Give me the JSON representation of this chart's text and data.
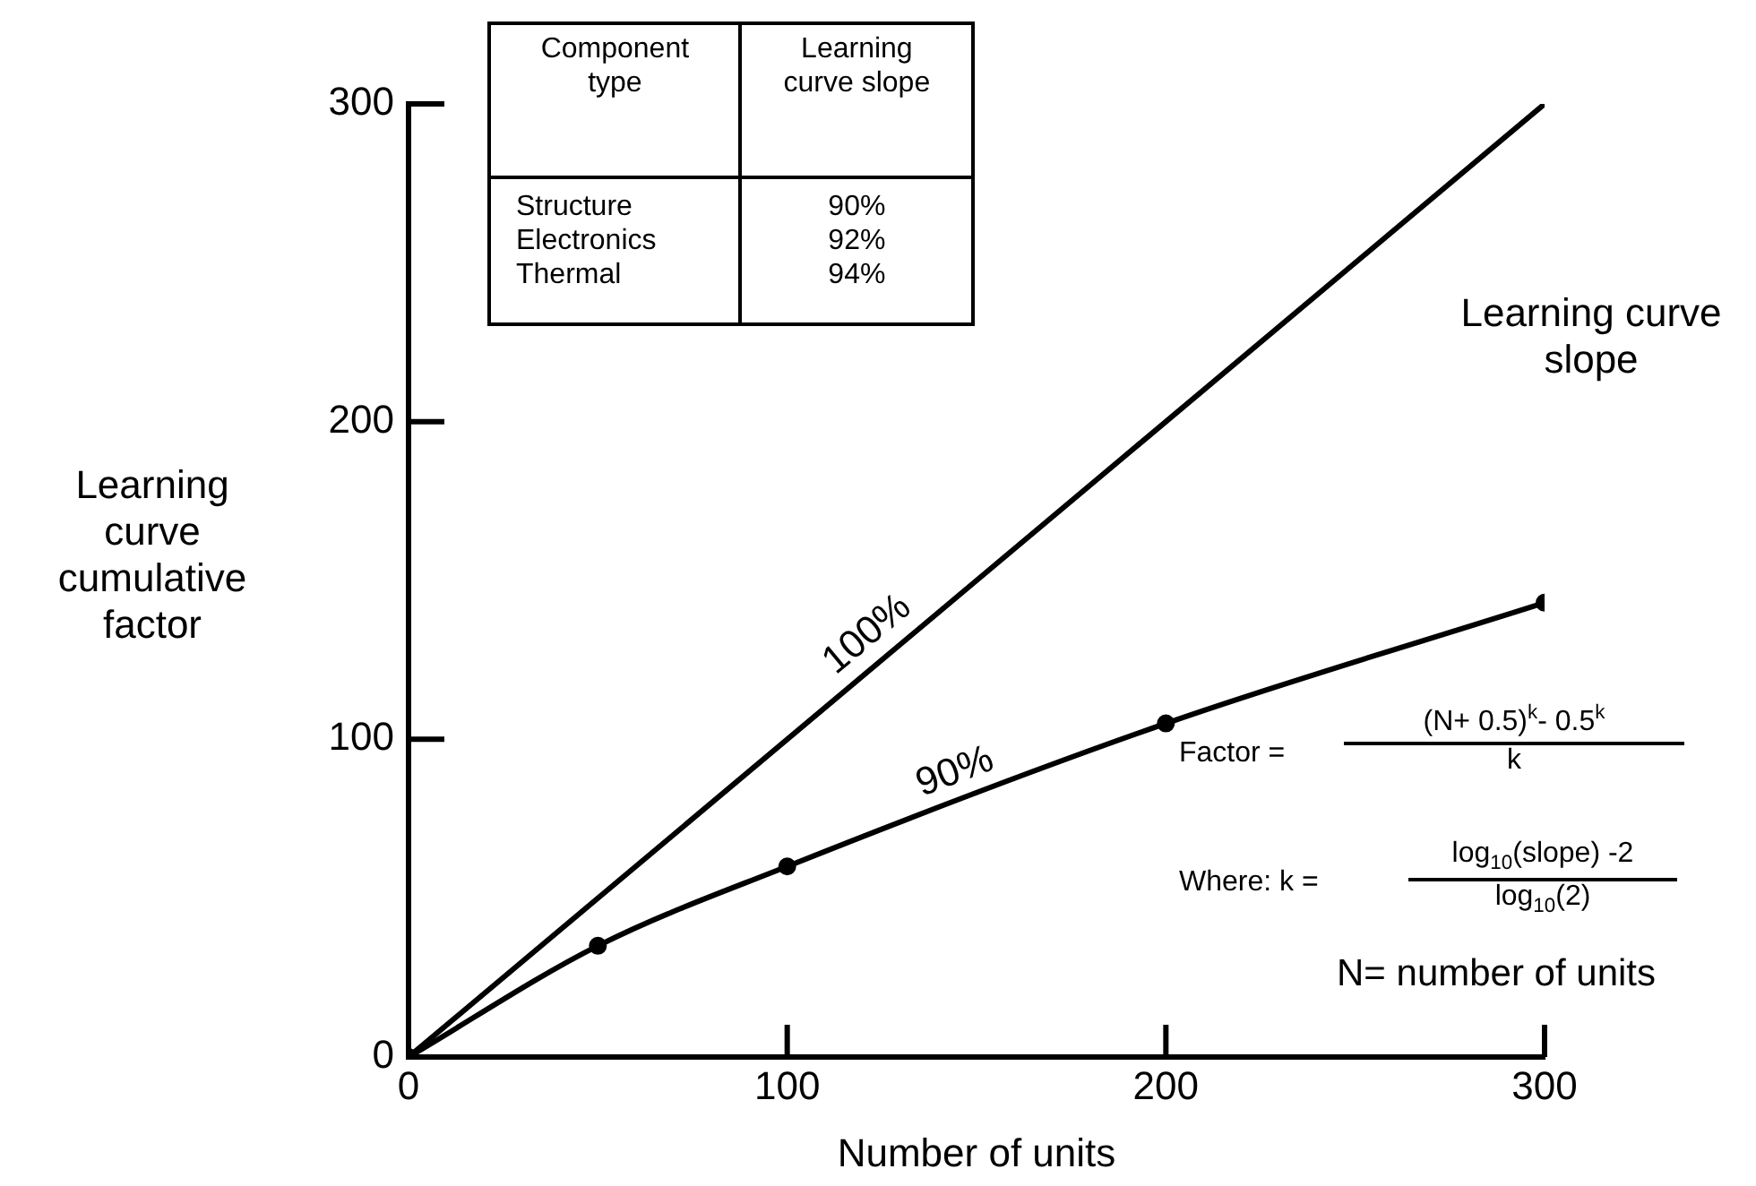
{
  "chart_data": {
    "type": "line",
    "xlabel": "Number of units",
    "ylabel": "Learning curve cumulative factor",
    "xlim": [
      0,
      300
    ],
    "xticks": [
      0,
      100,
      200,
      300
    ],
    "ylim": [
      0,
      300
    ],
    "yticks": [
      0,
      100,
      200,
      300
    ],
    "grid": false,
    "legend": false,
    "line_style": "solid",
    "series": [
      {
        "name": "100%",
        "color": "#000000",
        "x": [
          0,
          300
        ],
        "values": [
          0,
          300
        ]
      },
      {
        "name": "90%",
        "color": "#000000",
        "marker": "circle",
        "x": [
          0,
          50,
          100,
          200,
          300
        ],
        "values": [
          0,
          35,
          60,
          105,
          143
        ]
      }
    ],
    "annotations": [
      "Component type",
      "Learning curve slope",
      "Structure",
      "90%",
      "Electronics",
      "92%",
      "Thermal",
      "94%",
      "Learning curve slope",
      "Factor =",
      "(N+ 0.5)$^{k}$- 0.5$^{k}$",
      "k",
      "Where:   k =",
      "log$_{10}$(slope) -2",
      "log$_{10}$(2)",
      "N= number of units"
    ]
  }
}
